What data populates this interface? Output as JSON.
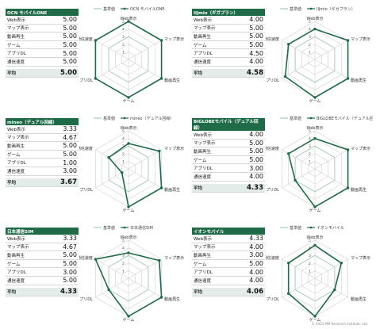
{
  "legend": {
    "standard": "基準値"
  },
  "axes": [
    "Web表示",
    "マップ表示",
    "動画再生",
    "ゲーム",
    "アプリDL",
    "通信速度"
  ],
  "scale_ticks": [
    "1",
    "2",
    "3",
    "4",
    "5"
  ],
  "avg_label": "平均",
  "footer": "© 2023 MM Research Institute, Ltd.",
  "colors": {
    "accent": "#1f6b48",
    "standard": "#a8cbb8",
    "grid": "#d0d0d0"
  },
  "chart_data": [
    {
      "type": "radar",
      "legend_label": "OCN モバイルONE",
      "table_title": "OCN モバイルONE",
      "series": [
        {
          "name": "OCN モバイルONE",
          "values": [
            5.0,
            5.0,
            5.0,
            5.0,
            5.0,
            5.0
          ]
        }
      ],
      "standard": [
        3,
        3,
        3,
        3,
        3,
        3
      ],
      "ylim": [
        0,
        5
      ],
      "table_values": [
        "5.00",
        "5.00",
        "5.00",
        "5.00",
        "5.00",
        "5.00"
      ],
      "average": "5.00"
    },
    {
      "type": "radar",
      "legend_label": "IIJmio（ギガプラン）",
      "table_title": "IIJmio（ギガプラン）",
      "series": [
        {
          "name": "IIJmio（ギガプラン）",
          "values": [
            4.0,
            5.0,
            5.0,
            5.0,
            4.5,
            4.0
          ]
        }
      ],
      "standard": [
        3,
        3,
        3,
        3,
        3,
        3
      ],
      "ylim": [
        0,
        5
      ],
      "table_values": [
        "4.00",
        "5.00",
        "5.00",
        "5.00",
        "4.50",
        "4.00"
      ],
      "average": "4.58"
    },
    {
      "type": "radar",
      "legend_label": "mineo（デュアル回線）",
      "table_title": "mineo（デュアル回線）",
      "series": [
        {
          "name": "mineo（デュアル回線）",
          "values": [
            3.33,
            4.67,
            5.0,
            5.0,
            1.0,
            3.0
          ]
        }
      ],
      "standard": [
        3,
        3,
        3,
        3,
        3,
        3
      ],
      "ylim": [
        0,
        5
      ],
      "table_values": [
        "3.33",
        "4.67",
        "5.00",
        "5.00",
        "1.00",
        "3.00"
      ],
      "average": "3.67"
    },
    {
      "type": "radar",
      "legend_label": "BIGLOBEモバイル（デュアル回線）",
      "table_title": "BIGLOBEモバイル（デュアル回線）",
      "series": [
        {
          "name": "BIGLOBEモバイル（デュアル回線）",
          "values": [
            4.0,
            5.0,
            5.0,
            5.0,
            3.0,
            4.0
          ]
        }
      ],
      "standard": [
        3,
        3,
        3,
        3,
        3,
        3
      ],
      "ylim": [
        0,
        5
      ],
      "table_values": [
        "4.00",
        "5.00",
        "5.00",
        "5.00",
        "3.00",
        "4.00"
      ],
      "average": "4.33"
    },
    {
      "type": "radar",
      "legend_label": "日本通信SIM",
      "table_title": "日本通信SIM",
      "series": [
        {
          "name": "日本通信SIM",
          "values": [
            3.33,
            4.67,
            5.0,
            5.0,
            3.0,
            5.0
          ]
        }
      ],
      "standard": [
        3,
        3,
        3,
        3,
        3,
        3
      ],
      "ylim": [
        0,
        5
      ],
      "table_values": [
        "3.33",
        "4.67",
        "5.00",
        "5.00",
        "3.00",
        "5.00"
      ],
      "average": "4.33"
    },
    {
      "type": "radar",
      "legend_label": "イオンモバイル",
      "table_title": "イオンモバイル",
      "series": [
        {
          "name": "イオンモバイル",
          "values": [
            4.33,
            4.0,
            3.0,
            5.0,
            4.0,
            4.0
          ]
        }
      ],
      "standard": [
        3,
        3,
        3,
        3,
        3,
        3
      ],
      "ylim": [
        0,
        5
      ],
      "table_values": [
        "4.33",
        "4.00",
        "3.00",
        "5.00",
        "4.00",
        "4.00"
      ],
      "average": "4.06"
    }
  ]
}
